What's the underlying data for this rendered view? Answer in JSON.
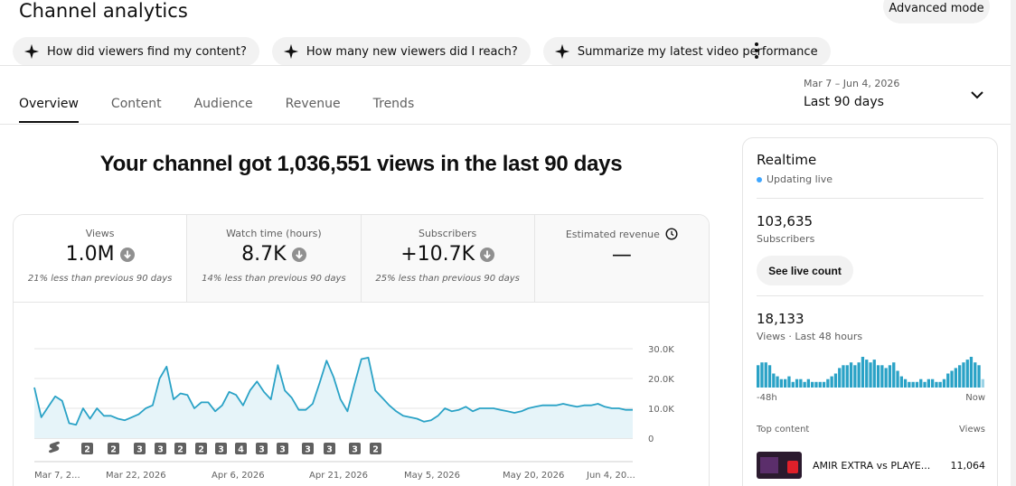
{
  "header": {
    "title": "Channel analytics",
    "advanced_mode": "Advanced mode"
  },
  "chips": [
    {
      "label": "How did viewers find my content?"
    },
    {
      "label": "How many new viewers did I reach?"
    },
    {
      "label": "Summarize my latest video performance"
    }
  ],
  "tabs": [
    {
      "label": "Overview"
    },
    {
      "label": "Content"
    },
    {
      "label": "Audience"
    },
    {
      "label": "Revenue"
    },
    {
      "label": "Trends"
    }
  ],
  "date_range": {
    "range": "Mar 7 – Jun 4, 2026",
    "label": "Last 90 days"
  },
  "headline": "Your channel got 1,036,551 views in the last 90 days",
  "metrics": [
    {
      "label": "Views",
      "value": "1.0M",
      "compare": "21% less than previous 90 days"
    },
    {
      "label": "Watch time (hours)",
      "value": "8.7K",
      "compare": "14% less than previous 90 days"
    },
    {
      "label": "Subscribers",
      "value": "+10.7K",
      "compare": "25% less than previous 90 days"
    },
    {
      "label": "Estimated revenue",
      "value": "—"
    }
  ],
  "chart_data": {
    "type": "area",
    "x_tick_labels": [
      "Mar 7, 2...",
      "Mar 22, 2026",
      "Apr 6, 2026",
      "Apr 21, 2026",
      "May 5, 2026",
      "May 20, 2026",
      "Jun 4, 20..."
    ],
    "y_tick_labels": [
      "30.0K",
      "20.0K",
      "10.0K",
      "0"
    ],
    "ylim": [
      0,
      30000
    ],
    "grid": true,
    "color": "#2aa2c6",
    "values": [
      17000,
      7000,
      10500,
      14000,
      12500,
      5000,
      4500,
      10000,
      6500,
      10000,
      7500,
      7500,
      6500,
      6000,
      7000,
      8000,
      10000,
      11000,
      20000,
      24000,
      13000,
      15000,
      14500,
      10000,
      12000,
      12000,
      9000,
      11000,
      15500,
      14500,
      11000,
      16000,
      19000,
      15500,
      13000,
      24500,
      16000,
      13500,
      9500,
      9500,
      11500,
      18500,
      26000,
      20500,
      13000,
      9000,
      18000,
      26500,
      27000,
      16000,
      13500,
      11000,
      9000,
      7500,
      7000,
      6500,
      5500,
      6000,
      7500,
      10000,
      9000,
      9500,
      10500,
      9000,
      10000,
      10000,
      10000,
      9500,
      9000,
      8500,
      9000,
      10000,
      10500,
      11000,
      11000,
      11000,
      11500,
      11000,
      10500,
      11000,
      11000,
      11500,
      10500,
      10000,
      10000,
      9500,
      9500
    ]
  },
  "upload_markers": [
    "shorts",
    "2",
    "2",
    "3",
    "3",
    "2",
    "2",
    "3",
    "4",
    "3",
    "3",
    "3",
    "3",
    "3",
    "2"
  ],
  "realtime": {
    "title": "Realtime",
    "status": "Updating live",
    "subscribers_value": "103,635",
    "subscribers_label": "Subscribers",
    "live_count_button": "See live count",
    "views_value": "18,133",
    "views_label": "Views · Last 48 hours",
    "axis_start": "-48h",
    "axis_end": "Now",
    "hourly_views": [
      8,
      9,
      9,
      8,
      5,
      4,
      3,
      3,
      4,
      2,
      3,
      3,
      2,
      3,
      2,
      2,
      2,
      2,
      3,
      4,
      5,
      7,
      8,
      8,
      9,
      8,
      9,
      11,
      10,
      9,
      10,
      8,
      8,
      7,
      8,
      9,
      6,
      4,
      3,
      2,
      2,
      2,
      3,
      2,
      3,
      3,
      2,
      2,
      3,
      5,
      6,
      7,
      8,
      9,
      10,
      11,
      9,
      8,
      3
    ],
    "top_content_label": "Top content",
    "top_views_label": "Views",
    "top_items": [
      {
        "title": "AMIR EXTRA vs PLAYE...",
        "views": "11,064"
      }
    ]
  },
  "colors": {
    "accent": "#2aa2c6",
    "live_dot": "#3ea6ff",
    "chip_bg": "#f2f2f2"
  }
}
